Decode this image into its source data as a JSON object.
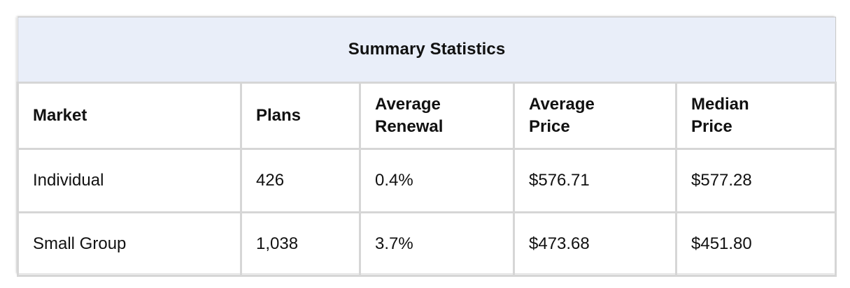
{
  "table": {
    "title": "Summary Statistics",
    "headers": [
      [
        "Market"
      ],
      [
        "Plans"
      ],
      [
        "Average",
        "Renewal"
      ],
      [
        "Average",
        "Price"
      ],
      [
        "Median",
        "Price"
      ]
    ],
    "rows": [
      [
        "Individual",
        "426",
        "0.4%",
        "$576.71",
        "$577.28"
      ],
      [
        "Small Group",
        "1,038",
        "3.7%",
        "$473.68",
        "$451.80"
      ]
    ]
  }
}
